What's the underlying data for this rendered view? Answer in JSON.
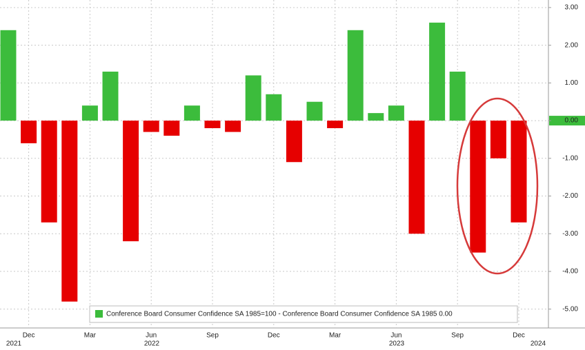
{
  "chart_data": {
    "type": "bar",
    "categories": [
      null,
      "Dec",
      null,
      null,
      "Mar",
      null,
      null,
      "Jun",
      null,
      null,
      "Sep",
      null,
      null,
      "Dec",
      null,
      null,
      "Mar",
      null,
      null,
      "Jun",
      null,
      null,
      "Sep",
      null,
      null,
      "Dec"
    ],
    "years": [
      "2021",
      "2022",
      "2023",
      "2024"
    ],
    "series": [
      {
        "name": "Conference Board Consumer Confidence SA 1985=100 - Conference Board Consumer Confidence SA 1985 0.00",
        "positive_color": "#3cbc3c",
        "negative_color": "#e60000",
        "values": [
          2.4,
          -0.6,
          -2.7,
          -4.8,
          0.4,
          1.3,
          -3.2,
          -0.3,
          -0.4,
          0.4,
          -0.2,
          -0.3,
          1.2,
          0.7,
          -1.1,
          0.5,
          -0.2,
          2.4,
          0.2,
          0.4,
          -3.0,
          2.6,
          1.3,
          -3.5,
          -1.0,
          -2.7
        ]
      }
    ],
    "ylim": [
      -5.5,
      3.2
    ],
    "yticks": [
      {
        "value": 3,
        "label": "3.00"
      },
      {
        "value": 2,
        "label": "2.00"
      },
      {
        "value": 1,
        "label": "1.00"
      },
      {
        "value": 0,
        "label": "0.00"
      },
      {
        "value": -1,
        "label": "-1.00"
      },
      {
        "value": -2,
        "label": "-2.00"
      },
      {
        "value": -3,
        "label": "-3.00"
      },
      {
        "value": -4,
        "label": "-4.00"
      },
      {
        "value": -5,
        "label": "-5.00"
      }
    ],
    "grid": true
  }
}
